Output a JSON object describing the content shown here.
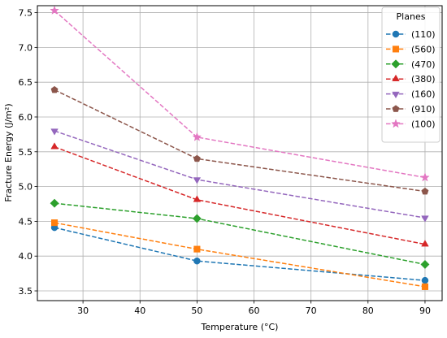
{
  "chart_data": {
    "type": "line",
    "xlabel": "Temperature (°C)",
    "ylabel": "Fracture Energy (J/m²)",
    "xlim": [
      22,
      93
    ],
    "ylim": [
      3.36,
      7.6
    ],
    "xticks": [
      30,
      40,
      50,
      60,
      70,
      80,
      90
    ],
    "yticks": [
      3.5,
      4.0,
      4.5,
      5.0,
      5.5,
      6.0,
      6.5,
      7.0,
      7.5
    ],
    "grid": true,
    "legend": {
      "title": "Planes",
      "placement": "top-right"
    },
    "x": [
      25,
      50,
      90
    ],
    "series": [
      {
        "name": "(110)",
        "values": [
          4.41,
          3.93,
          3.65
        ],
        "color": "#1f77b4",
        "marker": "circle"
      },
      {
        "name": "(560)",
        "values": [
          4.48,
          4.1,
          3.56
        ],
        "color": "#ff7f0e",
        "marker": "square"
      },
      {
        "name": "(470)",
        "values": [
          4.76,
          4.54,
          3.88
        ],
        "color": "#2ca02c",
        "marker": "diamond"
      },
      {
        "name": "(380)",
        "values": [
          5.57,
          4.81,
          4.17
        ],
        "color": "#d62728",
        "marker": "triangle-up"
      },
      {
        "name": "(160)",
        "values": [
          5.8,
          5.1,
          4.55
        ],
        "color": "#9467bd",
        "marker": "triangle-down"
      },
      {
        "name": "(910)",
        "values": [
          6.39,
          5.4,
          4.93
        ],
        "color": "#8c564b",
        "marker": "pentagon"
      },
      {
        "name": "(100)",
        "values": [
          7.53,
          5.71,
          5.13
        ],
        "color": "#e377c2",
        "marker": "star"
      }
    ]
  }
}
